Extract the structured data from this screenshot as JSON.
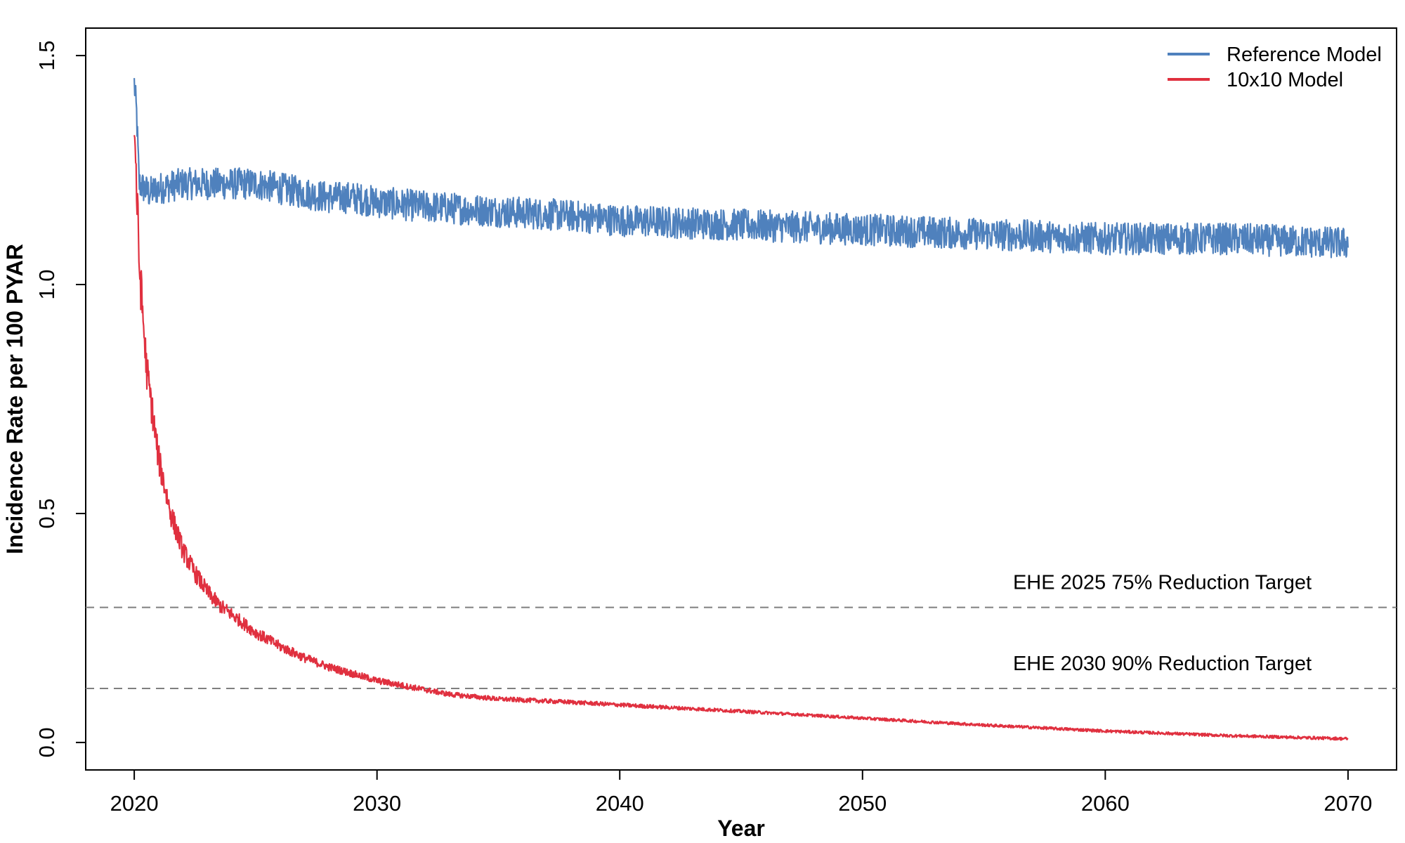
{
  "chart_data": {
    "type": "line",
    "title": "",
    "xlabel": "Year",
    "ylabel": "Incidence Rate per 100 PYAR",
    "xlim": [
      2018,
      2072
    ],
    "ylim": [
      -0.06,
      1.56
    ],
    "xticks": [
      {
        "value": 2020,
        "label": "2020"
      },
      {
        "value": 2030,
        "label": "2030"
      },
      {
        "value": 2040,
        "label": "2040"
      },
      {
        "value": 2050,
        "label": "2050"
      },
      {
        "value": 2060,
        "label": "2060"
      },
      {
        "value": 2070,
        "label": "2070"
      }
    ],
    "yticks": [
      {
        "value": 0.0,
        "label": "0.0"
      },
      {
        "value": 0.5,
        "label": "0.5"
      },
      {
        "value": 1.0,
        "label": "1.0"
      },
      {
        "value": 1.5,
        "label": "1.5"
      }
    ],
    "grid": false,
    "legend_position": "top-right",
    "series": [
      {
        "name": "Reference Model",
        "color": "#4f81bd",
        "x": [
          2020.0,
          2020.1,
          2020.2,
          2020.4,
          2020.6,
          2021,
          2022,
          2023,
          2024,
          2025,
          2026,
          2027,
          2028,
          2029,
          2030,
          2032,
          2035,
          2038,
          2040,
          2045,
          2050,
          2055,
          2060,
          2065,
          2070
        ],
        "values": [
          1.44,
          1.37,
          1.22,
          1.21,
          1.2,
          1.21,
          1.22,
          1.22,
          1.22,
          1.22,
          1.21,
          1.2,
          1.19,
          1.19,
          1.18,
          1.17,
          1.16,
          1.15,
          1.14,
          1.13,
          1.12,
          1.11,
          1.1,
          1.1,
          1.09
        ],
        "noise_amplitude": 0.035
      },
      {
        "name": "10x10 Model",
        "color": "#e0303f",
        "x": [
          2020.0,
          2020.2,
          2020.5,
          2021,
          2021.5,
          2022,
          2022.5,
          2023,
          2023.5,
          2024,
          2025,
          2026,
          2027,
          2028,
          2029,
          2030,
          2031,
          2032,
          2033,
          2035,
          2038,
          2040,
          2045,
          2050,
          2055,
          2060,
          2065,
          2070
        ],
        "values": [
          1.36,
          1.05,
          0.82,
          0.62,
          0.5,
          0.42,
          0.37,
          0.33,
          0.3,
          0.28,
          0.24,
          0.21,
          0.185,
          0.165,
          0.15,
          0.135,
          0.125,
          0.115,
          0.105,
          0.095,
          0.088,
          0.082,
          0.068,
          0.053,
          0.038,
          0.025,
          0.015,
          0.008
        ],
        "noise_amplitude": 0.008
      }
    ],
    "reference_lines": [
      {
        "y": 0.295,
        "label": "EHE 2025 75% Reduction Target",
        "style": "dashed",
        "color": "#7f7f7f"
      },
      {
        "y": 0.118,
        "label": "EHE 2030 90% Reduction Target",
        "style": "dashed",
        "color": "#7f7f7f"
      }
    ]
  }
}
